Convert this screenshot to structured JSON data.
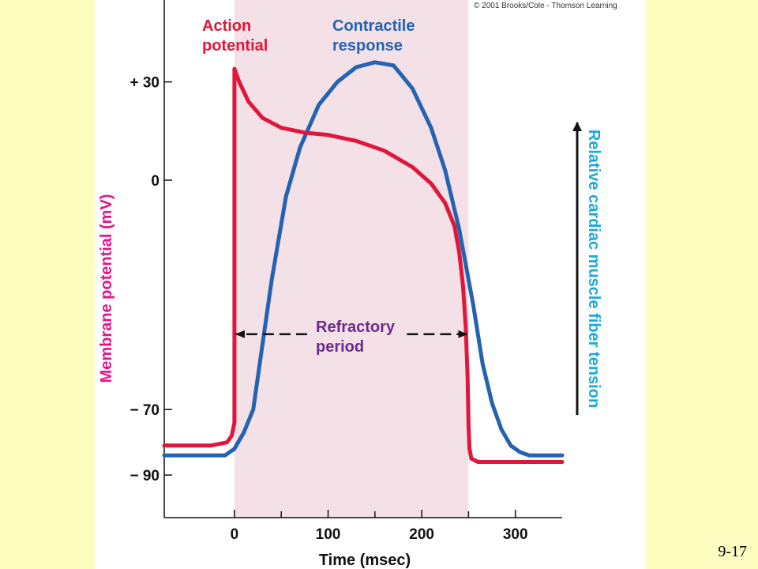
{
  "slide_number": "9-17",
  "copyright": "© 2001 Brooks/Cole - Thomson Learning",
  "colors": {
    "background": "#fdfdc0",
    "shade": "#f3e1e7",
    "action_potential": "#e0163a",
    "contractile_response": "#2463b1",
    "refractory": "#6b2a8c",
    "ylabel_left": "#e8128a",
    "ylabel_right": "#19a9dc"
  },
  "chart_data": {
    "type": "line",
    "xlabel": "Time (msec)",
    "ylabel": "Membrane potential (mV)",
    "ylabel_right": "Relative cardiac muscle fiber tension",
    "xlim": [
      -75,
      350
    ],
    "ylim": [
      -103,
      55
    ],
    "x_ticks": [
      0,
      100,
      200,
      300
    ],
    "x_minor_ticks": [
      50,
      150,
      250
    ],
    "y_ticks": [
      {
        "value": 30,
        "label": "+ 30"
      },
      {
        "value": 0,
        "label": "0"
      },
      {
        "value": -70,
        "label": "− 70"
      },
      {
        "value": -90,
        "label": "− 90"
      }
    ],
    "shaded_region": {
      "x": [
        0,
        250
      ],
      "label": "Refractory period"
    },
    "refractory_arrow": {
      "x": [
        0,
        250
      ],
      "y": -47
    },
    "series": [
      {
        "name": "Action potential",
        "color": "#e0163a",
        "points": [
          [
            -75,
            -81
          ],
          [
            -25,
            -81
          ],
          [
            -8,
            -80
          ],
          [
            -3,
            -78
          ],
          [
            0,
            -74
          ],
          [
            0,
            34
          ],
          [
            5,
            30
          ],
          [
            15,
            24
          ],
          [
            30,
            19
          ],
          [
            50,
            16
          ],
          [
            75,
            14.5
          ],
          [
            100,
            13.8
          ],
          [
            130,
            12
          ],
          [
            160,
            9
          ],
          [
            190,
            4
          ],
          [
            210,
            -1
          ],
          [
            225,
            -7
          ],
          [
            235,
            -14
          ],
          [
            240,
            -22
          ],
          [
            244,
            -32
          ],
          [
            247,
            -45
          ],
          [
            249,
            -60
          ],
          [
            250,
            -75
          ],
          [
            251,
            -82
          ],
          [
            253,
            -85
          ],
          [
            260,
            -86
          ],
          [
            350,
            -86
          ]
        ]
      },
      {
        "name": "Contractile response",
        "color": "#2463b1",
        "points": [
          [
            -75,
            -84
          ],
          [
            -10,
            -84
          ],
          [
            0,
            -82
          ],
          [
            10,
            -77
          ],
          [
            20,
            -70
          ],
          [
            30,
            -50
          ],
          [
            40,
            -30
          ],
          [
            55,
            -5
          ],
          [
            70,
            10
          ],
          [
            90,
            23
          ],
          [
            110,
            30
          ],
          [
            130,
            34.5
          ],
          [
            150,
            36
          ],
          [
            170,
            35
          ],
          [
            190,
            28
          ],
          [
            210,
            16
          ],
          [
            225,
            3
          ],
          [
            240,
            -15
          ],
          [
            255,
            -38
          ],
          [
            265,
            -56
          ],
          [
            275,
            -68
          ],
          [
            285,
            -76
          ],
          [
            295,
            -81
          ],
          [
            305,
            -83
          ],
          [
            315,
            -84
          ],
          [
            350,
            -84
          ]
        ]
      }
    ],
    "annotations": [
      {
        "text": "Action potential",
        "lines": [
          "Action",
          "potential"
        ],
        "color": "#e0163a"
      },
      {
        "text": "Contractile response",
        "lines": [
          "Contractile",
          "response"
        ],
        "color": "#2463b1"
      },
      {
        "text": "Refractory period",
        "lines": [
          "Refractory",
          "period"
        ],
        "color": "#6b2a8c"
      }
    ]
  }
}
